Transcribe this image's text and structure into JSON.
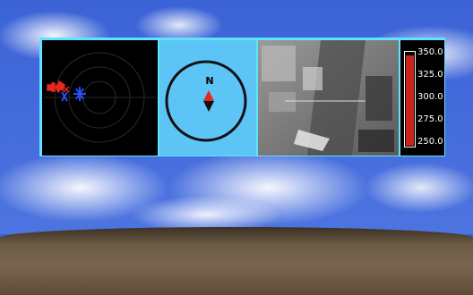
{
  "compass": {
    "north_label": "N"
  },
  "gauge": {
    "ticks": [
      "350.0",
      "325.0",
      "300.0",
      "275.0",
      "250.0"
    ],
    "min": 250.0,
    "max": 350.0,
    "level_fraction": 0.97,
    "fill_color": "#c8261a"
  },
  "colors": {
    "hud_border": "#5fe3ff",
    "radar_red": "#e8271e",
    "radar_blue": "#2a4cff",
    "compass_marker_red": "#e8271e"
  },
  "icons": {
    "radar": "radar-scope-icon",
    "compass": "compass-icon"
  }
}
